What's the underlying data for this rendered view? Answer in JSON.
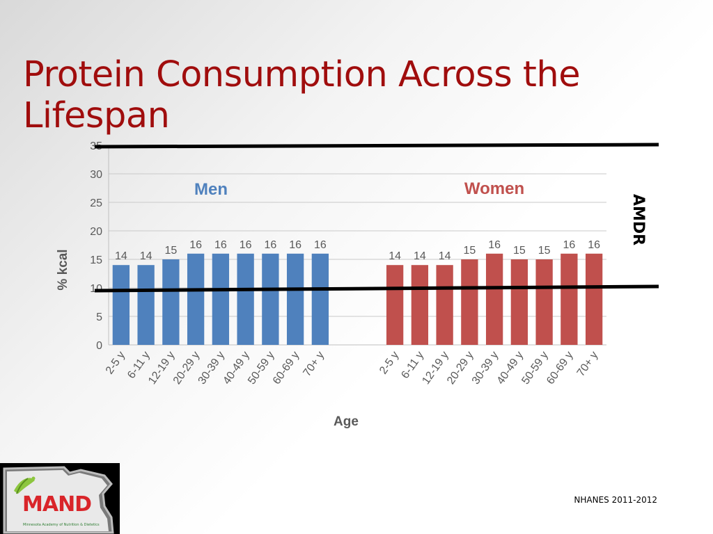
{
  "slide": {
    "title": "Protein Consumption Across the Lifespan",
    "source": "NHANES 2011-2012",
    "logo": {
      "text": "MAND",
      "tagline": "Minnesota Academy of Nutrition & Dietetics"
    }
  },
  "colors": {
    "title": "#a00d0d",
    "men": "#4f81bd",
    "women": "#c0504d",
    "men_label": "#4f81bd",
    "women_label": "#c0504d",
    "axis_text": "#595959",
    "grid": "#c9c9c9",
    "amdr_line": "#000000",
    "logo_text": "#d9252a"
  },
  "chart_data": {
    "type": "bar",
    "xlabel": "Age",
    "ylabel": "% kcal",
    "ylim": [
      0,
      35
    ],
    "yticks": [
      0,
      5,
      10,
      15,
      20,
      25,
      30,
      35
    ],
    "grid": true,
    "series": [
      {
        "name": "Men",
        "categories": [
          "2-5 y",
          "6-11 y",
          "12-19 y",
          "20-29 y",
          "30-39 y",
          "40-49 y",
          "50-59 y",
          "60-69 y",
          "70+ y"
        ],
        "values": [
          14,
          14,
          15,
          16,
          16,
          16,
          16,
          16,
          16
        ]
      },
      {
        "name": "Women",
        "categories": [
          "2-5 y",
          "6-11 y",
          "12-19 y",
          "20-29 y",
          "30-39 y",
          "40-49 y",
          "50-59 y",
          "60-69 y",
          "70+ y"
        ],
        "values": [
          14,
          14,
          14,
          15,
          16,
          15,
          15,
          16,
          16
        ]
      }
    ],
    "annotations": {
      "amdr_label": "AMDR",
      "amdr_range": [
        10,
        35
      ]
    }
  }
}
